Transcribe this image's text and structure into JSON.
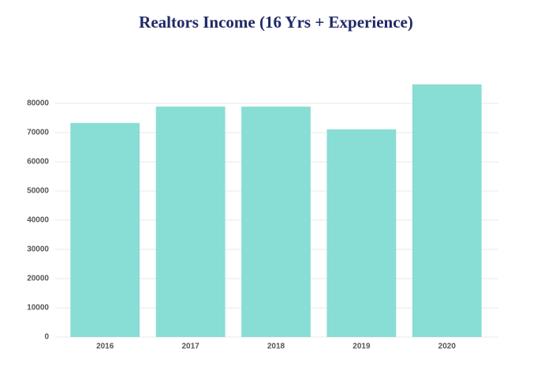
{
  "chart_data": {
    "type": "bar",
    "title": "Realtors Income (16 Yrs + Experience)",
    "categories": [
      "2016",
      "2017",
      "2018",
      "2019",
      "2020"
    ],
    "values": [
      73300,
      78900,
      78900,
      71100,
      86500
    ],
    "color": "#88ddd4",
    "ylim": [
      0,
      90000
    ],
    "yticks": [
      0,
      10000,
      20000,
      30000,
      40000,
      50000,
      60000,
      70000,
      80000
    ],
    "grid": true
  }
}
